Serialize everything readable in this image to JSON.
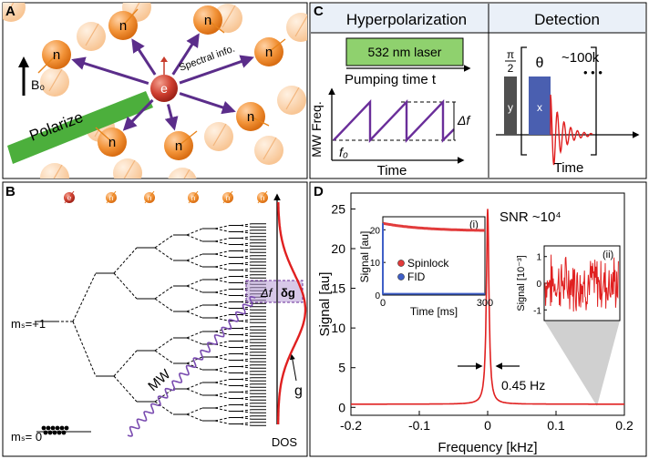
{
  "panel_letters": {
    "a": "A",
    "b": "B",
    "c": "C",
    "d": "D"
  },
  "panel_a": {
    "nucleus_label": "n",
    "electron_label": "e",
    "field_label": "B₀",
    "polarize_label": "Polarize",
    "spectral_label": "Spectral info.",
    "colors": {
      "nucleus": "#f08a2c",
      "nucleus_faded": "#f9c79b",
      "electron": "#c73a2a",
      "arrow": "#5b2d8a",
      "bar": "#4caf3c"
    }
  },
  "panel_c": {
    "hyper_title": "Hyperpolarization",
    "detect_title": "Detection",
    "laser_label": "532 nm laser",
    "pumping_label": "Pumping time t",
    "mw_axis_label": "MW Freq.",
    "time_label": "Time",
    "f0_label": "f₀",
    "delta_f_label": "Δf",
    "pi2_numerator": "π",
    "pi2_denominator": "2",
    "theta_label": "θ",
    "y_label": "y",
    "x_label": "x",
    "count_label": "~100k",
    "dots": "• • •",
    "detect_time_label": "Time",
    "colors": {
      "laser_box": "#8fd16e",
      "y_pulse": "#505050",
      "x_pulse": "#4a5fb0",
      "sawtooth": "#6a2e9a",
      "signal": "#e02020"
    }
  },
  "panel_b": {
    "electron_label": "e",
    "nucleus_label": "n",
    "ms_plus": "mₛ=+1",
    "ms_zero": "mₛ= 0",
    "mw_label": "MW",
    "delta_f_label": "Δf",
    "delta_g_label": "δg",
    "g_label": "g",
    "dos_label": "DOS",
    "colors": {
      "dos_curve": "#e02020",
      "mw": "#7a4cb0",
      "band": "#b79ad6"
    }
  },
  "panel_d": {
    "snr_label": "SNR ~10⁴",
    "fwhm_label": "0.45 Hz",
    "ylabel": "Signal [au]",
    "xlabel": "Frequency [kHz]",
    "xticks": [
      "-0.2",
      "-0.1",
      "0",
      "0.1",
      "0.2"
    ],
    "yticks": [
      "0",
      "5",
      "10",
      "15",
      "20",
      "25"
    ],
    "inset1": {
      "tag": "(i)",
      "ylabel": "Signal [au]",
      "xlabel": "Time [ms]",
      "xticks": [
        "0",
        "300"
      ],
      "yticks": [
        "0",
        "10",
        "20"
      ],
      "legend": [
        "Spinlock",
        "FID"
      ]
    },
    "inset2": {
      "tag": "(ii)",
      "ylabel": "Signal [10⁻³]",
      "yticks": [
        "1",
        "0",
        "-1"
      ]
    },
    "colors": {
      "spectrum": "#e02020",
      "spinlock": "#e23b3b",
      "fid": "#3f5fc7",
      "cone": "#d0d0d0"
    }
  }
}
